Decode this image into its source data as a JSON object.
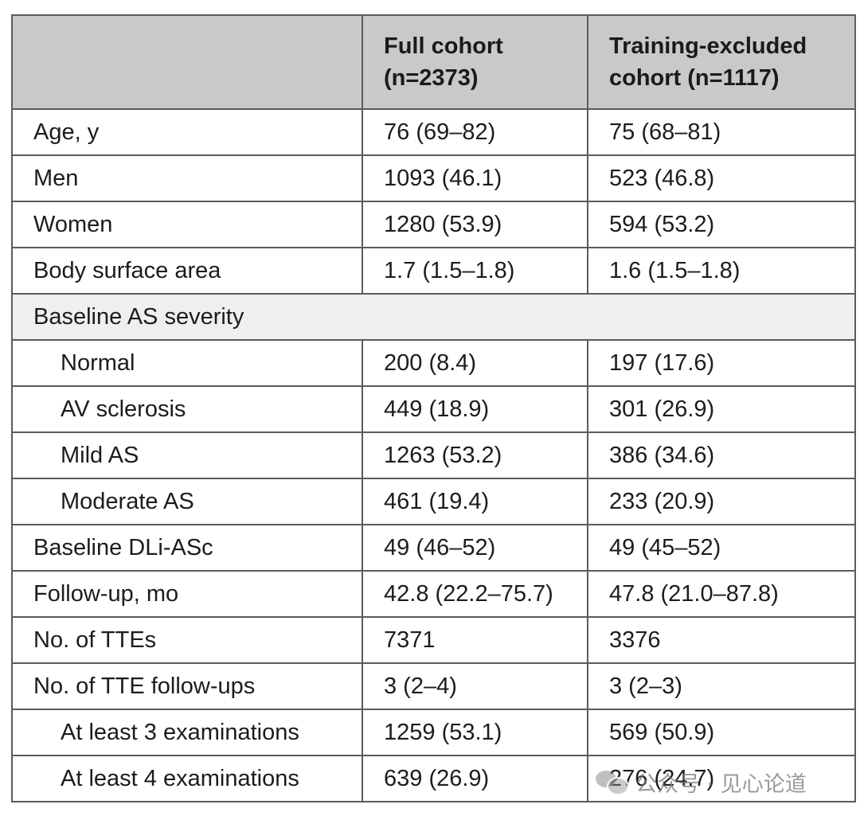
{
  "table": {
    "headers": [
      "",
      "Full cohort\n(n=2373)",
      "Training-excluded\ncohort (n=1117)"
    ],
    "header_lines": {
      "full": [
        "Full cohort",
        "(n=2373)"
      ],
      "excluded": [
        "Training-excluded",
        "cohort (n=1117)"
      ]
    },
    "rows": [
      {
        "label": "Age, y",
        "full": "76 (69–82)",
        "excluded": "75 (68–81)"
      },
      {
        "label": "Men",
        "full": "1093 (46.1)",
        "excluded": "523 (46.8)"
      },
      {
        "label": "Women",
        "full": "1280 (53.9)",
        "excluded": "594 (53.2)"
      },
      {
        "label": "Body surface area",
        "full": "1.7 (1.5–1.8)",
        "excluded": "1.6 (1.5–1.8)"
      },
      {
        "label": "Baseline AS severity",
        "section": true
      },
      {
        "label": "Normal",
        "full": "200 (8.4)",
        "excluded": "197 (17.6)",
        "indent": true
      },
      {
        "label": "AV sclerosis",
        "full": "449 (18.9)",
        "excluded": "301 (26.9)",
        "indent": true
      },
      {
        "label": "Mild AS",
        "full": "1263 (53.2)",
        "excluded": "386 (34.6)",
        "indent": true
      },
      {
        "label": "Moderate AS",
        "full": "461 (19.4)",
        "excluded": "233 (20.9)",
        "indent": true
      },
      {
        "label": "Baseline DLi-ASc",
        "full": "49 (46–52)",
        "excluded": "49 (45–52)"
      },
      {
        "label": "Follow-up, mo",
        "full": "42.8 (22.2–75.7)",
        "excluded": "47.8 (21.0–87.8)"
      },
      {
        "label": "No. of TTEs",
        "full": "7371",
        "excluded": "3376"
      },
      {
        "label": "No. of TTE follow-ups",
        "full": "3 (2–4)",
        "excluded": "3 (2–3)"
      },
      {
        "label": "At least 3 examinations",
        "full": "1259 (53.1)",
        "excluded": "569 (50.9)",
        "indent": true
      },
      {
        "label": "At least 4 examinations",
        "full": "639 (26.9)",
        "excluded": "276 (24.7)",
        "indent": true
      }
    ]
  },
  "watermark": {
    "text": "公众号 · 见心论道",
    "icon": "wechat-icon"
  }
}
